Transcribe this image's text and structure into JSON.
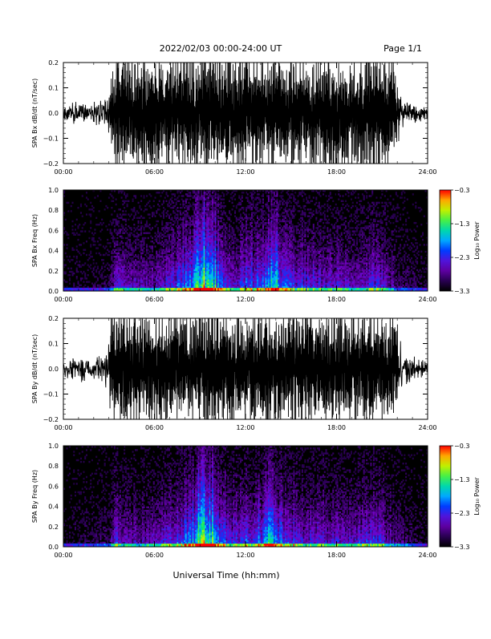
{
  "header": {
    "title": "2022/02/03  00:00-24:00 UT",
    "page": "Page 1/1"
  },
  "xaxis": {
    "label": "Universal Time (hh:mm)",
    "range_hours": [
      0,
      24
    ],
    "ticks": [
      "00:00",
      "06:00",
      "12:00",
      "18:00",
      "24:00"
    ],
    "tick_hours": [
      0,
      6,
      12,
      18,
      24
    ]
  },
  "chart_data": [
    {
      "type": "line",
      "title": "",
      "ylabel": "SPA Bx dB/dt (nT/sec)",
      "ylim": [
        -0.2,
        0.2
      ],
      "yticks": [
        0.2,
        0.1,
        0.0,
        -0.1,
        -0.2
      ],
      "ytick_labels": [
        "0.2",
        "0.1",
        "0.0",
        "−0.1",
        "−0.2"
      ],
      "series": [
        {
          "envelope_hours": [
            0,
            2,
            3,
            3.4,
            4,
            6,
            8,
            10,
            12,
            14,
            16,
            18,
            20,
            21.5,
            22.2,
            23,
            24
          ],
          "envelope_amplitude": [
            0.05,
            0.06,
            0.09,
            0.25,
            0.25,
            0.25,
            0.25,
            0.25,
            0.25,
            0.25,
            0.25,
            0.25,
            0.25,
            0.25,
            0.12,
            0.05,
            0.04
          ]
        }
      ]
    },
    {
      "type": "heatmap",
      "title": "",
      "ylabel": "SPA Bx Freq (Hz)",
      "ylim": [
        0,
        1.0
      ],
      "yticks": [
        1.0,
        0.8,
        0.6,
        0.4,
        0.2,
        0.0
      ],
      "ytick_labels": [
        "1.0",
        "0.8",
        "0.6",
        "0.4",
        "0.2",
        "0.0"
      ],
      "colorbar": {
        "label": "Log₁₀ Power",
        "range": [
          -3.3,
          -0.3
        ],
        "ticks": [
          -0.3,
          -1.3,
          -2.3,
          -3.3
        ],
        "tick_labels": [
          "−0.3",
          "−1.3",
          "−2.3",
          "−3.3"
        ]
      },
      "activity_hours": [
        0,
        3,
        3.5,
        4,
        6,
        8.5,
        9.2,
        9.7,
        10.2,
        11,
        13,
        13.8,
        14.5,
        16,
        19,
        20.7,
        22,
        24
      ],
      "activity_level": [
        0.05,
        0.1,
        0.45,
        0.3,
        0.3,
        0.6,
        0.95,
        0.9,
        0.6,
        0.4,
        0.55,
        0.8,
        0.5,
        0.4,
        0.35,
        0.45,
        0.2,
        0.05
      ]
    },
    {
      "type": "line",
      "title": "",
      "ylabel": "SPA By dB/dt (nT/sec)",
      "ylim": [
        -0.2,
        0.2
      ],
      "yticks": [
        0.2,
        0.1,
        0.0,
        -0.1,
        -0.2
      ],
      "ytick_labels": [
        "0.2",
        "0.1",
        "0.0",
        "−0.1",
        "−0.2"
      ],
      "series": [
        {
          "envelope_hours": [
            0,
            2,
            3,
            3.2,
            4,
            6,
            8,
            10,
            12,
            14,
            16,
            18,
            20,
            21.5,
            22.2,
            23,
            24
          ],
          "envelope_amplitude": [
            0.05,
            0.07,
            0.12,
            0.25,
            0.25,
            0.25,
            0.25,
            0.25,
            0.25,
            0.25,
            0.25,
            0.25,
            0.25,
            0.25,
            0.12,
            0.06,
            0.04
          ]
        }
      ]
    },
    {
      "type": "heatmap",
      "title": "",
      "ylabel": "SPA By Freq (Hz)",
      "ylim": [
        0,
        1.0
      ],
      "yticks": [
        1.0,
        0.8,
        0.6,
        0.4,
        0.2,
        0.0
      ],
      "ytick_labels": [
        "1.0",
        "0.8",
        "0.6",
        "0.4",
        "0.2",
        "0.0"
      ],
      "colorbar": {
        "label": "Log₁₀ Power",
        "range": [
          -3.3,
          -0.3
        ],
        "ticks": [
          -0.3,
          -1.3,
          -2.3,
          -3.3
        ],
        "tick_labels": [
          "−0.3",
          "−1.3",
          "−2.3",
          "−3.3"
        ]
      },
      "activity_hours": [
        0,
        3,
        3.5,
        4,
        6,
        8.5,
        9.2,
        9.7,
        10.2,
        11,
        13,
        13.8,
        14.5,
        16,
        19,
        20.7,
        22,
        24
      ],
      "activity_level": [
        0.05,
        0.15,
        0.45,
        0.3,
        0.3,
        0.6,
        0.95,
        0.9,
        0.6,
        0.4,
        0.55,
        0.8,
        0.5,
        0.4,
        0.35,
        0.45,
        0.2,
        0.05
      ]
    }
  ]
}
